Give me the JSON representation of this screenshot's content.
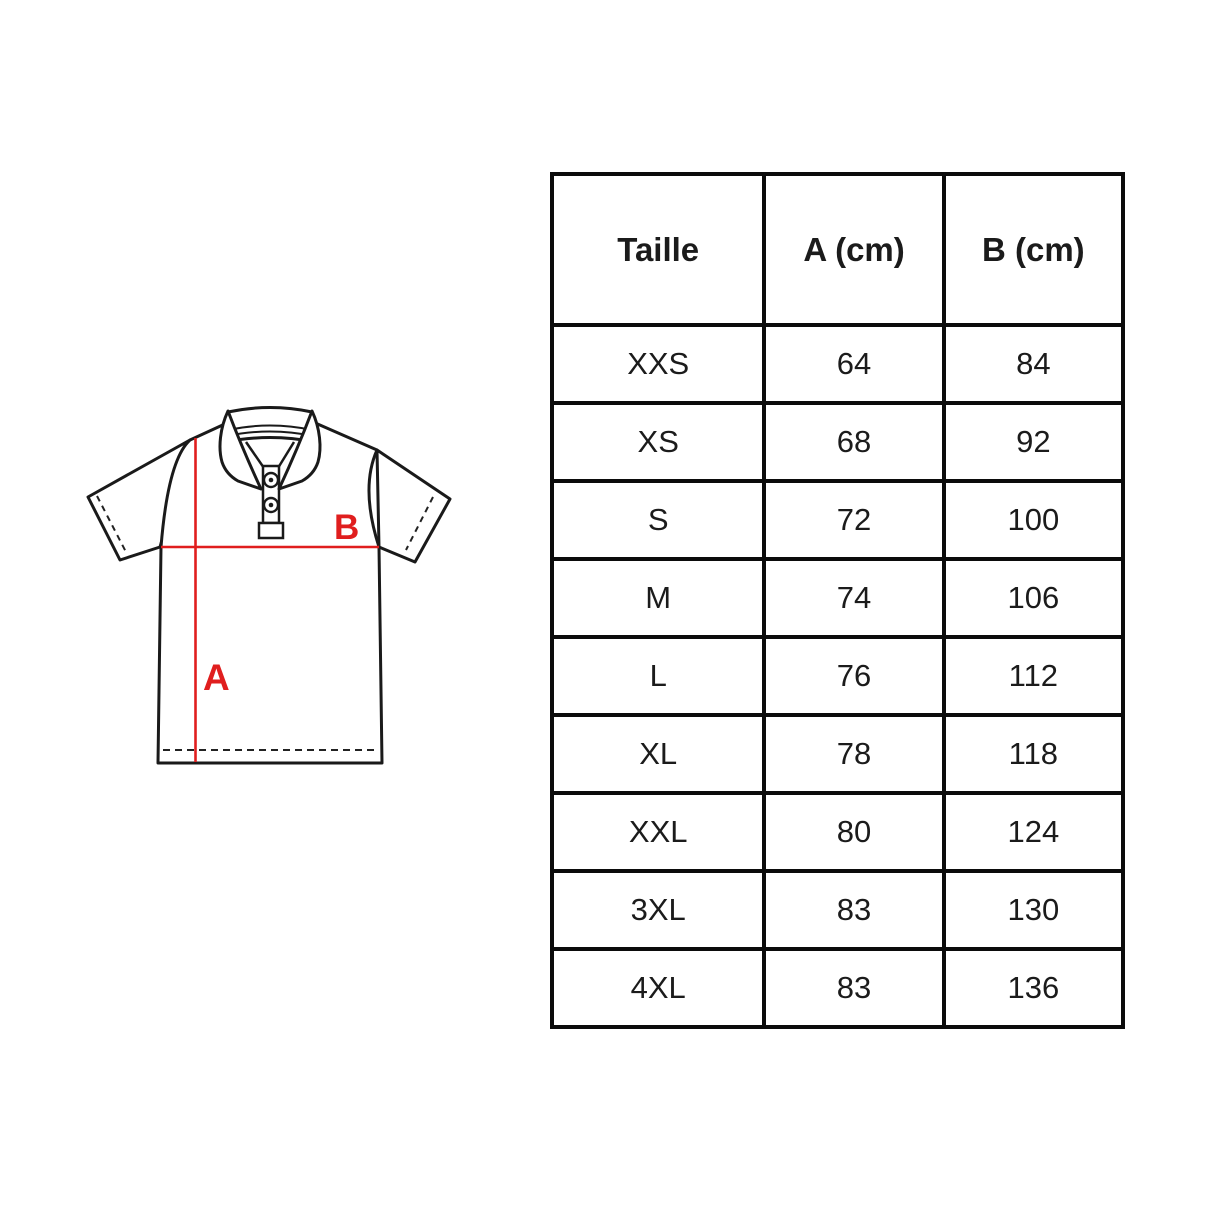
{
  "page": {
    "background": "#ffffff"
  },
  "diagram": {
    "label_a": "A",
    "label_b": "B",
    "accent_color": "#e01e1e",
    "outline_color": "#1a1a1a"
  },
  "chart_data": {
    "type": "table",
    "columns": [
      "Taille",
      "A (cm)",
      "B (cm)"
    ],
    "rows": [
      [
        "XXS",
        "64",
        "84"
      ],
      [
        "XS",
        "68",
        "92"
      ],
      [
        "S",
        "72",
        "100"
      ],
      [
        "M",
        "74",
        "106"
      ],
      [
        "L",
        "76",
        "112"
      ],
      [
        "XL",
        "78",
        "118"
      ],
      [
        "XXL",
        "80",
        "124"
      ],
      [
        "3XL",
        "83",
        "130"
      ],
      [
        "4XL",
        "83",
        "136"
      ]
    ]
  }
}
